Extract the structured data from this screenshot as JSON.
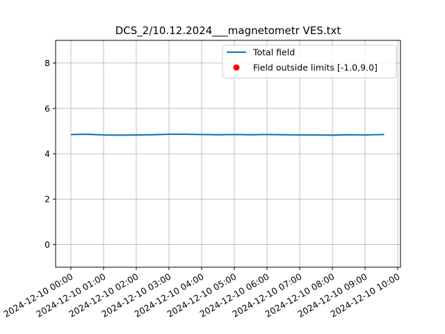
{
  "chart_data": {
    "type": "line",
    "title": "DCS_2/10.12.2024___magnetometr VES.txt",
    "xlabel": "",
    "ylabel": "",
    "grid": true,
    "legend_placement": "top-right",
    "x_unit": "datetime",
    "xlim": [
      "2024-12-09 23:32",
      "2024-12-10 10:05"
    ],
    "ylim": [
      -1.0,
      9.0
    ],
    "x_ticks": [
      "2024-12-10 00:00",
      "2024-12-10 01:00",
      "2024-12-10 02:00",
      "2024-12-10 03:00",
      "2024-12-10 04:00",
      "2024-12-10 05:00",
      "2024-12-10 06:00",
      "2024-12-10 07:00",
      "2024-12-10 08:00",
      "2024-12-10 09:00",
      "2024-12-10 10:00"
    ],
    "y_ticks": [
      0,
      2,
      4,
      6,
      8
    ],
    "series": [
      {
        "name": "Total field",
        "kind": "line",
        "color": "#1f77b4",
        "x": [
          "2024-12-10 00:00",
          "2024-12-10 00:30",
          "2024-12-10 01:00",
          "2024-12-10 01:30",
          "2024-12-10 02:00",
          "2024-12-10 02:30",
          "2024-12-10 03:00",
          "2024-12-10 03:30",
          "2024-12-10 04:00",
          "2024-12-10 04:30",
          "2024-12-10 05:00",
          "2024-12-10 05:30",
          "2024-12-10 06:00",
          "2024-12-10 06:30",
          "2024-12-10 07:00",
          "2024-12-10 07:30",
          "2024-12-10 08:00",
          "2024-12-10 08:30",
          "2024-12-10 09:00",
          "2024-12-10 09:35"
        ],
        "y": [
          4.85,
          4.86,
          4.83,
          4.82,
          4.83,
          4.84,
          4.86,
          4.86,
          4.85,
          4.84,
          4.85,
          4.84,
          4.85,
          4.84,
          4.83,
          4.83,
          4.82,
          4.84,
          4.83,
          4.85
        ]
      },
      {
        "name": "Field outside limits [-1.0,9.0]",
        "kind": "scatter",
        "color": "#ff0000",
        "x": [],
        "y": []
      }
    ]
  }
}
